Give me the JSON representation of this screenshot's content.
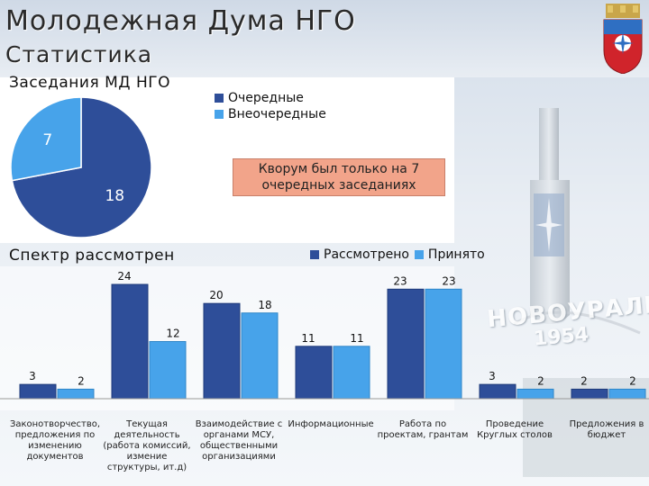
{
  "header": {
    "title": "Молодежная Дума НГО",
    "subtitle": "Статистика"
  },
  "colors": {
    "dark_blue": "#2e4e99",
    "light_blue": "#47a3ea",
    "callout_bg": "#f2a48a"
  },
  "icons": {
    "crest": "city-crest-icon",
    "monument": "novouralsk-monument-icon"
  },
  "monument_text": {
    "city": "НОВОУРАЛЬСК",
    "year": "1954"
  },
  "chart_data": [
    {
      "type": "pie",
      "title": "Заседания МД НГО",
      "labels": [
        "Очередные",
        "Внеочередные"
      ],
      "values": [
        18,
        7
      ],
      "colors": [
        "#2e4e99",
        "#47a3ea"
      ],
      "legend": "top-right",
      "annotation": "Кворум был только на 7 очередных заседаниях"
    },
    {
      "type": "bar",
      "title": "Спектр рассмотрен",
      "categories": [
        "Законотворчество, предложения по изменению документов",
        "Текущая деятельность (работа комиссий, измение структуры, ит.д)",
        "Взаимодействие с органами МСУ, общественными организациями",
        "Информационные",
        "Работа по проектам, грантам",
        "Проведение Круглых столов",
        "Предложения в бюджет"
      ],
      "series": [
        {
          "name": "Рассмотрено",
          "values": [
            3,
            24,
            20,
            11,
            23,
            3,
            2
          ],
          "color": "#2e4e99"
        },
        {
          "name": "Принято",
          "values": [
            2,
            12,
            18,
            11,
            23,
            2,
            2
          ],
          "color": "#47a3ea"
        }
      ],
      "ylim": [
        0,
        24
      ],
      "legend": "top-right"
    }
  ]
}
